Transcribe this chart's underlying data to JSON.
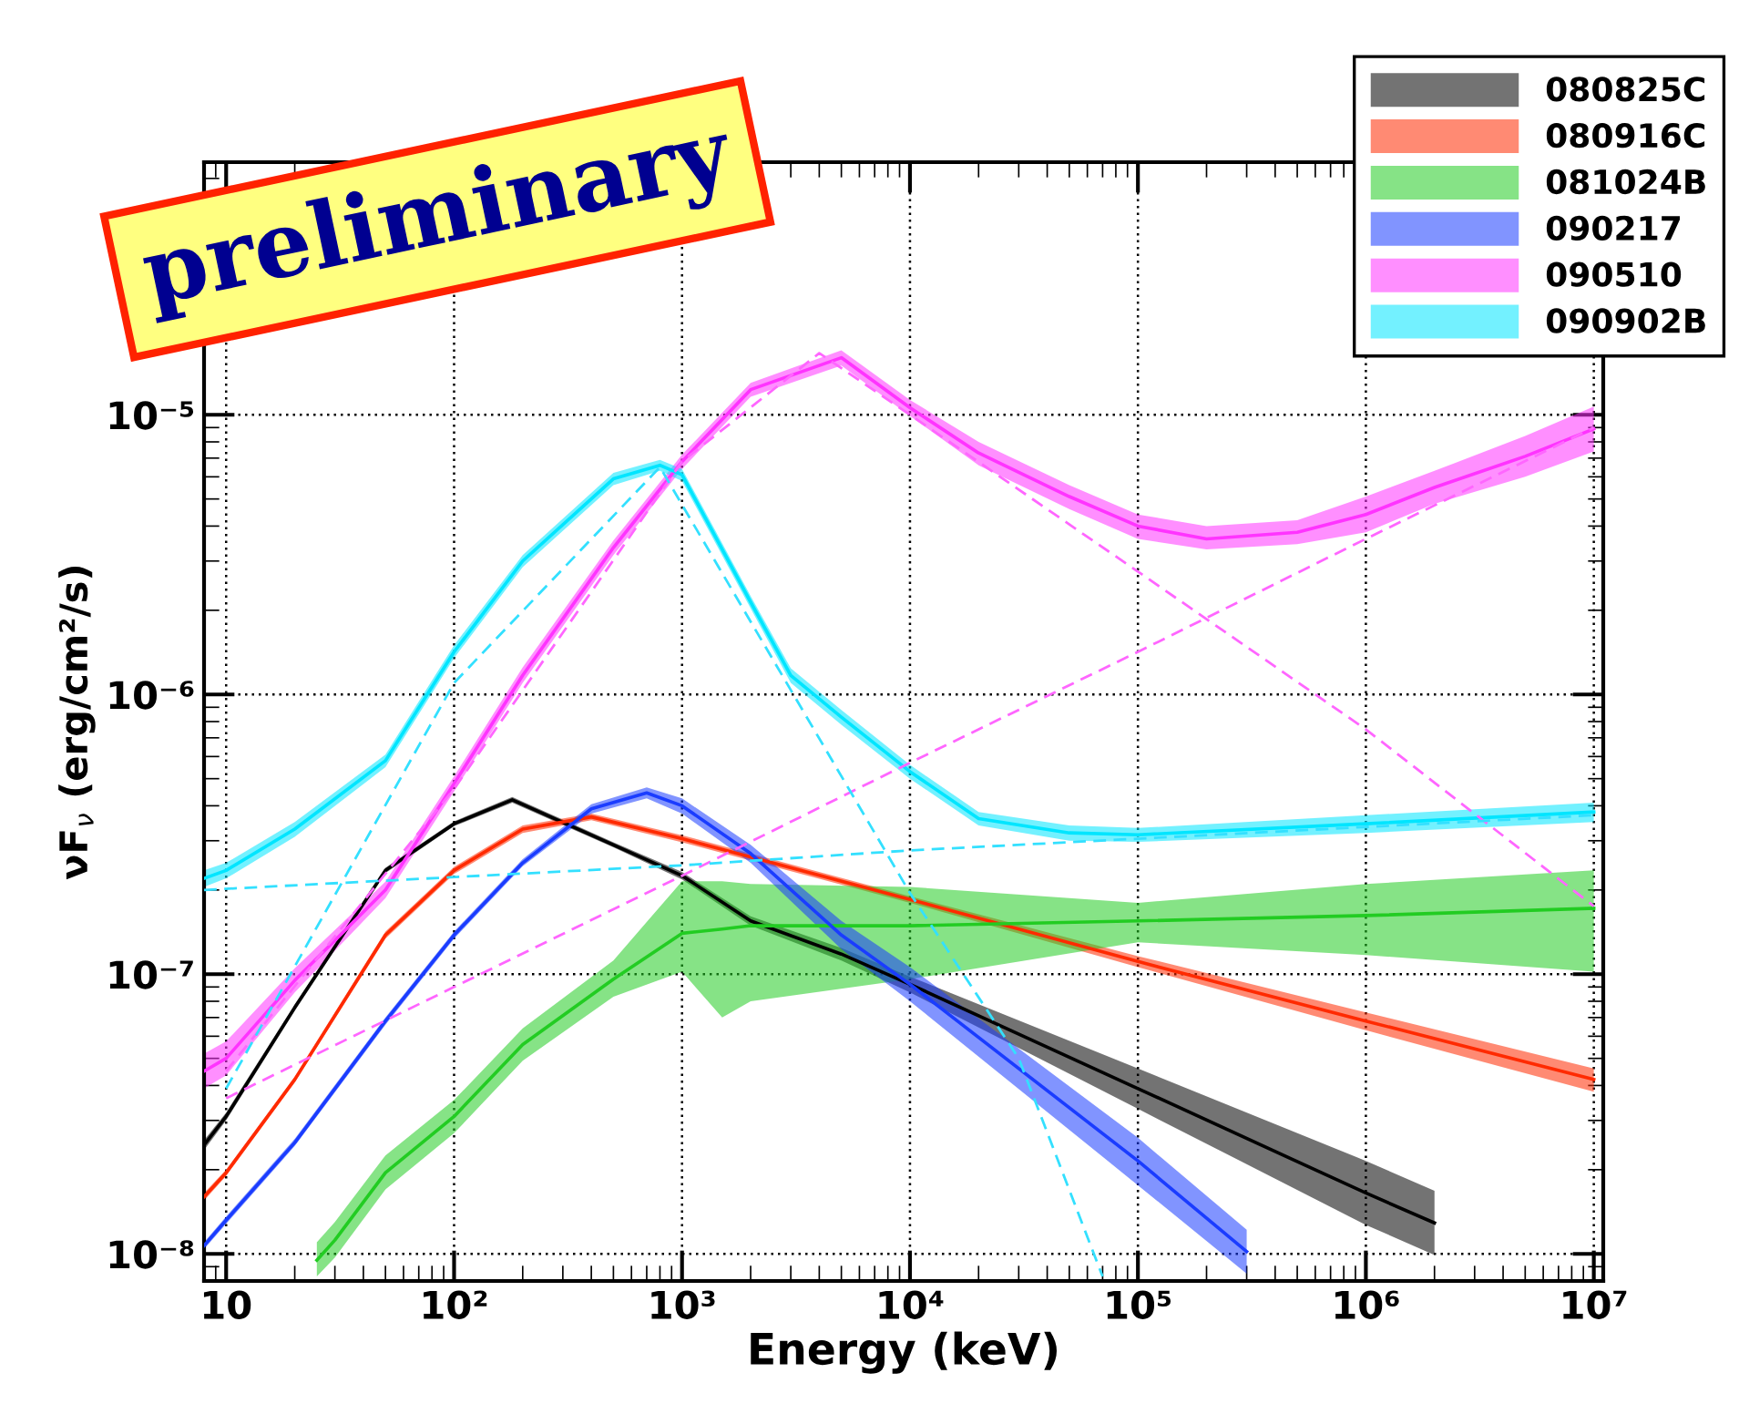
{
  "chart_data": {
    "type": "line",
    "xlabel": "Energy (keV)",
    "ylabel": "νF$_{ν}$ (erg/cm²/s)",
    "log": "xy",
    "grid": true,
    "legend": "top right",
    "xlim": [
      8,
      11000000
    ],
    "ylim": [
      8e-09,
      8e-05
    ],
    "xticks": [
      {
        "value": 10,
        "label": "10"
      },
      {
        "value": 100,
        "label": "10²"
      },
      {
        "value": 1000,
        "label": "10³"
      },
      {
        "value": 10000,
        "label": "10⁴"
      },
      {
        "value": 100000,
        "label": "10⁵"
      },
      {
        "value": 1000000,
        "label": "10⁶"
      },
      {
        "value": 10000000,
        "label": "10⁷"
      }
    ],
    "yticks": [
      {
        "value": 1e-08,
        "label": "10⁻⁸"
      },
      {
        "value": 1e-07,
        "label": "10⁻⁷"
      },
      {
        "value": 1e-06,
        "label": "10⁻⁶"
      },
      {
        "value": 1e-05,
        "label": "10⁻⁵"
      }
    ],
    "annotations": [
      "preliminary"
    ],
    "series": [
      {
        "name": "080825C",
        "color": "#000000",
        "x": [
          8,
          10,
          20,
          50,
          100,
          180,
          500,
          1000,
          2000,
          5000,
          10000,
          100000,
          1000000,
          2000000
        ],
        "values": [
          2.45e-08,
          3.1e-08,
          7.6e-08,
          2.35e-07,
          3.45e-07,
          4.2e-07,
          2.9e-07,
          2.25e-07,
          1.55e-07,
          1.18e-07,
          9.2e-08,
          3.9e-08,
          1.65e-08,
          1.29e-08
        ],
        "lower": [
          2.35e-08,
          3e-08,
          7.4e-08,
          2.3e-07,
          3.38e-07,
          4.1e-07,
          2.84e-07,
          2.18e-07,
          1.49e-07,
          1.12e-07,
          8.6e-08,
          3.3e-08,
          1.27e-08,
          9.9e-09
        ],
        "upper": [
          2.55e-08,
          3.2e-08,
          7.8e-08,
          2.4e-07,
          3.52e-07,
          4.3e-07,
          2.96e-07,
          2.32e-07,
          1.61e-07,
          1.24e-07,
          9.8e-08,
          4.6e-08,
          2.15e-08,
          1.68e-08
        ]
      },
      {
        "name": "080916C",
        "color": "#ff2a00",
        "x": [
          8,
          10,
          20,
          50,
          100,
          200,
          400,
          1000,
          10000,
          100000,
          1000000,
          10000000
        ],
        "values": [
          1.6e-08,
          1.95e-08,
          4.2e-08,
          1.38e-07,
          2.35e-07,
          3.3e-07,
          3.65e-07,
          3.05e-07,
          1.85e-07,
          1.11e-07,
          6.8e-08,
          4.2e-08
        ],
        "lower": [
          1.55e-08,
          1.9e-08,
          4.1e-08,
          1.34e-07,
          2.28e-07,
          3.2e-07,
          3.55e-07,
          2.96e-07,
          1.8e-07,
          1.06e-07,
          6.3e-08,
          3.8e-08
        ],
        "upper": [
          1.65e-08,
          2e-08,
          4.3e-08,
          1.42e-07,
          2.42e-07,
          3.4e-07,
          3.75e-07,
          3.14e-07,
          1.9e-07,
          1.16e-07,
          7.3e-08,
          4.6e-08
        ]
      },
      {
        "name": "081024B",
        "color": "#22cc22",
        "x": [
          25,
          30,
          50,
          100,
          200,
          500,
          1000,
          1500,
          2000,
          10000,
          100000,
          1000000,
          10000000
        ],
        "values": [
          9.5e-09,
          1.12e-08,
          1.95e-08,
          3.1e-08,
          5.6e-08,
          9.6e-08,
          1.4e-07,
          1.45e-07,
          1.49e-07,
          1.49e-07,
          1.55e-07,
          1.62e-07,
          1.72e-07
        ],
        "lower": [
          8.3e-09,
          9.7e-09,
          1.7e-08,
          2.7e-08,
          4.9e-08,
          8.3e-08,
          1.02e-07,
          7e-08,
          8e-08,
          9.6e-08,
          1.3e-07,
          1.17e-07,
          1.02e-07
        ],
        "upper": [
          1.1e-08,
          1.3e-08,
          2.25e-08,
          3.55e-08,
          6.4e-08,
          1.12e-07,
          2.15e-07,
          2.15e-07,
          2.1e-07,
          2.05e-07,
          1.8e-07,
          2.1e-07,
          2.35e-07
        ]
      },
      {
        "name": "090217",
        "color": "#1a3cff",
        "x": [
          8,
          10,
          20,
          50,
          100,
          200,
          400,
          700,
          1000,
          2000,
          5000,
          10000,
          100000,
          300000
        ],
        "values": [
          1.07e-08,
          1.32e-08,
          2.5e-08,
          6.8e-08,
          1.38e-07,
          2.5e-07,
          3.9e-07,
          4.45e-07,
          4e-07,
          2.7e-07,
          1.38e-07,
          9.2e-08,
          2.15e-08,
          1.02e-08
        ],
        "lower": [
          1.04e-08,
          1.28e-08,
          2.43e-08,
          6.6e-08,
          1.34e-07,
          2.43e-07,
          3.75e-07,
          4.25e-07,
          3.75e-07,
          2.5e-07,
          1.23e-07,
          8e-08,
          1.76e-08,
          8.5e-09
        ],
        "upper": [
          1.1e-08,
          1.36e-08,
          2.58e-08,
          7e-08,
          1.42e-07,
          2.58e-07,
          4.05e-07,
          4.65e-07,
          4.25e-07,
          2.9e-07,
          1.55e-07,
          1.06e-07,
          2.6e-08,
          1.22e-08
        ]
      },
      {
        "name": "090510",
        "color": "#ff33ff",
        "x": [
          8,
          10,
          20,
          50,
          100,
          200,
          500,
          1000,
          2000,
          5000,
          10000,
          20000,
          50000,
          100000,
          200000,
          500000,
          1000000,
          2000000,
          5000000,
          10000000
        ],
        "values": [
          4.5e-08,
          5e-08,
          9.5e-08,
          2e-07,
          4.8e-07,
          1.17e-06,
          3.35e-06,
          6.8e-06,
          1.23e-05,
          1.6e-05,
          1.06e-05,
          7.3e-06,
          5.1e-06,
          4e-06,
          3.6e-06,
          3.8e-06,
          4.4e-06,
          5.5e-06,
          7.1e-06,
          8.9e-06
        ],
        "lower": [
          3.9e-08,
          4.35e-08,
          8.6e-08,
          1.87e-07,
          4.5e-07,
          1.1e-06,
          3.15e-06,
          6.4e-06,
          1.16e-05,
          1.5e-05,
          9.9e-06,
          6.6e-06,
          4.6e-06,
          3.6e-06,
          3.3e-06,
          3.45e-06,
          3.8e-06,
          4.8e-06,
          6e-06,
          7.4e-06
        ],
        "upper": [
          5.2e-08,
          5.75e-08,
          1.05e-07,
          2.14e-07,
          5.1e-07,
          1.25e-06,
          3.55e-06,
          7.2e-06,
          1.3e-05,
          1.7e-05,
          1.13e-05,
          8e-06,
          5.6e-06,
          4.4e-06,
          4e-06,
          4.2e-06,
          5.1e-06,
          6.3e-06,
          8.4e-06,
          1.07e-05
        ]
      },
      {
        "name": "090902B",
        "color": "#00e5ff",
        "x": [
          8,
          10,
          20,
          50,
          100,
          200,
          500,
          800,
          1000,
          2000,
          3000,
          5000,
          10000,
          20000,
          50000,
          100000,
          1000000,
          10000000
        ],
        "values": [
          2.2e-07,
          2.35e-07,
          3.3e-07,
          5.8e-07,
          1.42e-06,
          3e-06,
          5.9e-06,
          6.6e-06,
          6.1e-06,
          2.14e-06,
          1.17e-06,
          8.3e-07,
          5.3e-07,
          3.6e-07,
          3.2e-07,
          3.15e-07,
          3.45e-07,
          3.8e-07
        ],
        "lower": [
          2.05e-07,
          2.2e-07,
          3.1e-07,
          5.5e-07,
          1.35e-06,
          2.85e-06,
          5.6e-06,
          6.3e-06,
          5.8e-06,
          2.03e-06,
          1.1e-06,
          7.8e-07,
          5e-07,
          3.4e-07,
          3e-07,
          2.97e-07,
          3.2e-07,
          3.5e-07
        ],
        "upper": [
          2.35e-07,
          2.5e-07,
          3.5e-07,
          6.1e-07,
          1.5e-06,
          3.15e-06,
          6.2e-06,
          6.9e-06,
          6.4e-06,
          2.25e-06,
          1.24e-06,
          8.8e-07,
          5.6e-07,
          3.8e-07,
          3.4e-07,
          3.33e-07,
          3.7e-07,
          4.1e-07
        ]
      },
      {
        "color": "#ff66ff",
        "line_style": "dashed",
        "x": [
          10,
          100,
          1000,
          4000,
          10000,
          100000,
          1000000,
          10000000
        ],
        "values": [
          4.5e-08,
          4.6e-07,
          6.8e-06,
          1.66e-05,
          1e-05,
          2.75e-06,
          7.5e-07,
          1.75e-07
        ]
      },
      {
        "color": "#ff66ff",
        "line_style": "dashed",
        "x": [
          10,
          100,
          1000,
          10000,
          100000,
          1000000,
          10000000
        ],
        "values": [
          3.6e-08,
          9e-08,
          2.25e-07,
          5.7e-07,
          1.42e-06,
          3.6e-06,
          9e-06
        ]
      },
      {
        "color": "#33e0ff",
        "line_style": "dashed",
        "x": [
          10,
          100,
          800,
          10000,
          30000,
          70000
        ],
        "values": [
          3.9e-08,
          1.1e-06,
          6.5e-06,
          1.95e-07,
          5e-08,
          8.3e-09
        ]
      },
      {
        "color": "#33e0ff",
        "line_style": "dashed",
        "x": [
          8,
          1000,
          10000,
          10000000
        ],
        "values": [
          2e-07,
          2.45e-07,
          2.77e-07,
          3.7e-07
        ]
      }
    ]
  }
}
